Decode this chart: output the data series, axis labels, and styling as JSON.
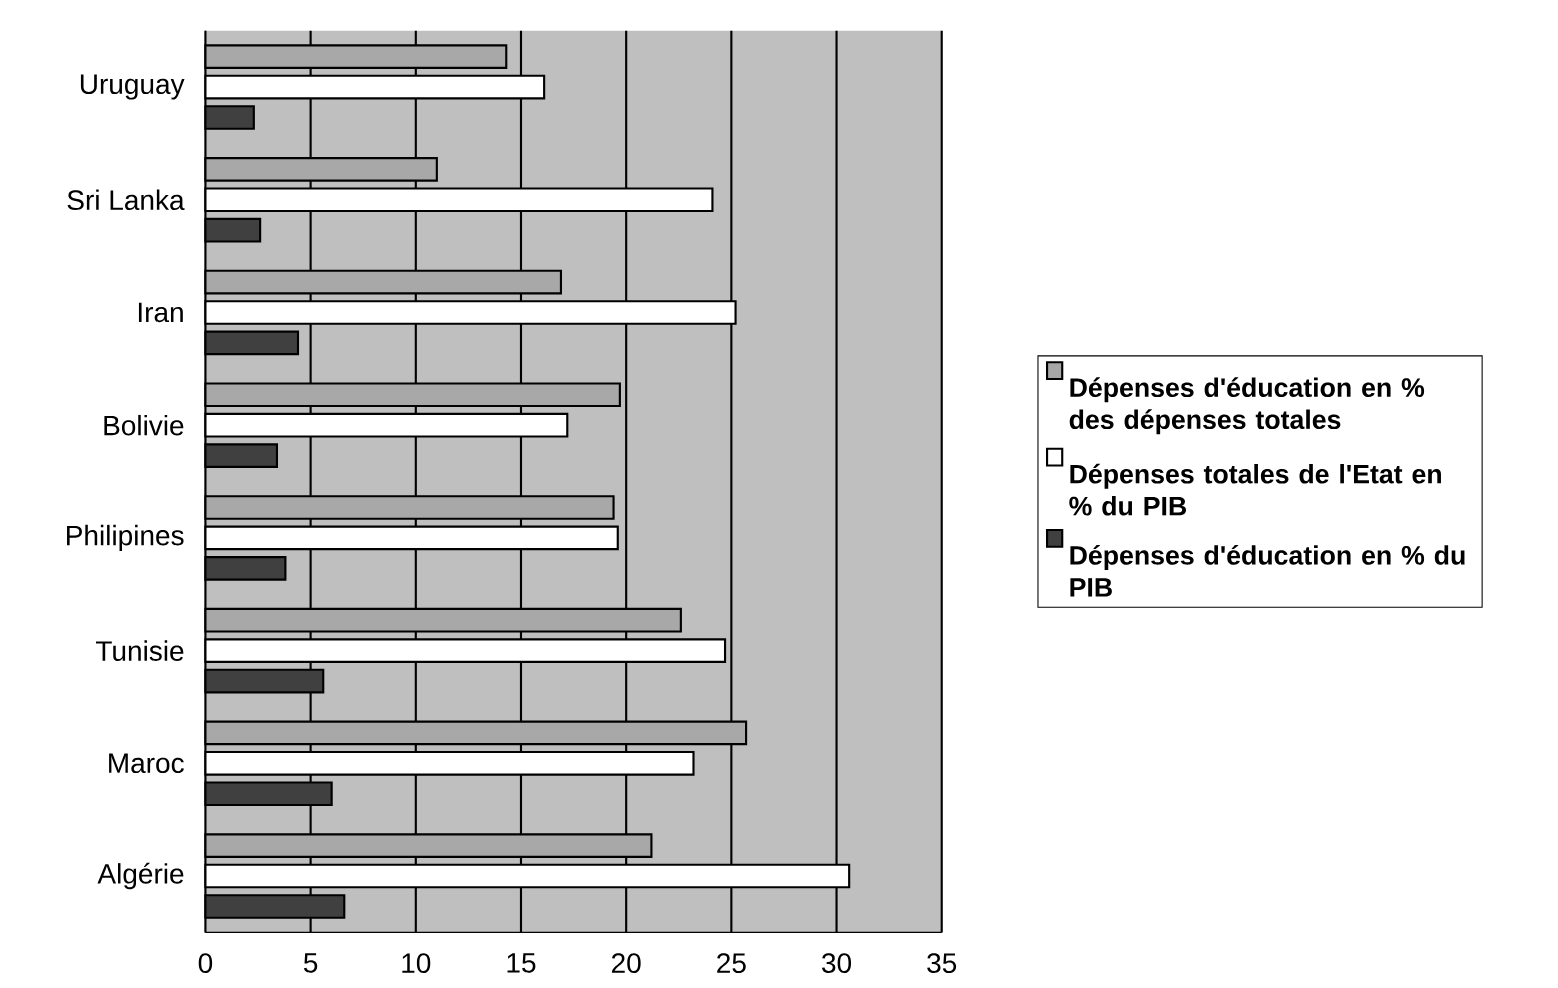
{
  "chart_data": {
    "type": "bar",
    "orientation": "horizontal",
    "categories": [
      "Uruguay",
      "Sri Lanka",
      "Iran",
      "Bolivie",
      "Philipines",
      "Tunisie",
      "Maroc",
      "Algérie"
    ],
    "series": [
      {
        "name": "Dépenses d'éducation en % des dépenses totales",
        "color": "#a8a8a8",
        "values": [
          14.3,
          11.0,
          16.9,
          19.7,
          19.4,
          22.6,
          25.7,
          21.2
        ]
      },
      {
        "name": "Dépenses totales de l'Etat en % du PIB",
        "color": "#ffffff",
        "values": [
          16.1,
          24.1,
          25.2,
          17.2,
          19.6,
          24.7,
          23.2,
          30.6
        ]
      },
      {
        "name": "Dépenses d'éducation en % du PIB",
        "color": "#404040",
        "values": [
          2.3,
          2.6,
          4.4,
          3.4,
          3.8,
          5.6,
          6.0,
          6.6
        ]
      }
    ],
    "xlim": [
      0,
      35
    ],
    "xticks": [
      0,
      5,
      10,
      15,
      20,
      25,
      30,
      35
    ],
    "grid": "x",
    "legend": "right"
  }
}
